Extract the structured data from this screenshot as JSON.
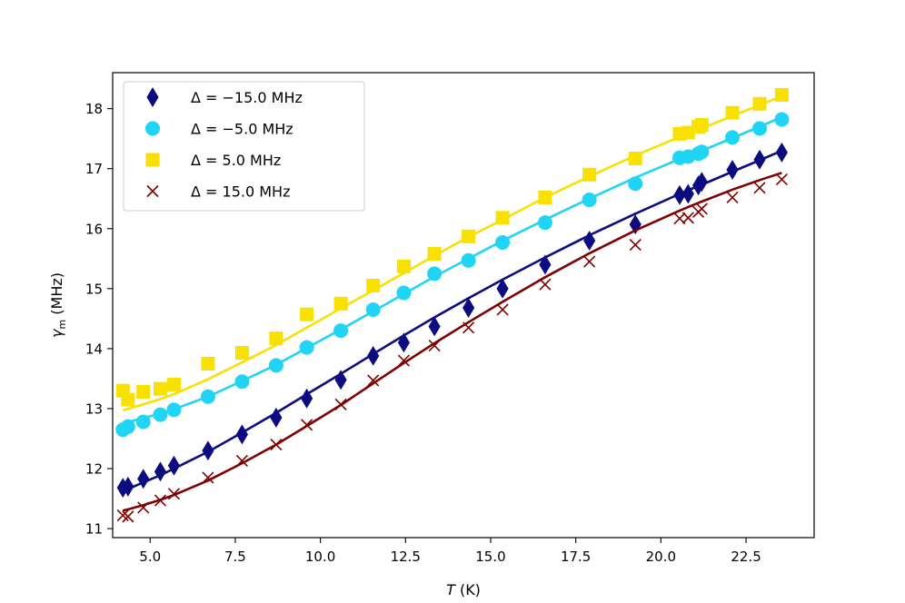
{
  "chart_data": {
    "type": "scatter",
    "title": "",
    "xlabel_var": "T",
    "xlabel_unit": " (K)",
    "ylabel_var": "γ",
    "ylabel_sub": "m",
    "ylabel_unit": " (MHz)",
    "xlim": [
      3.9,
      24.5
    ],
    "ylim": [
      10.85,
      18.6
    ],
    "xticks": [
      5.0,
      7.5,
      10.0,
      12.5,
      15.0,
      17.5,
      20.0,
      22.5
    ],
    "xtick_labels": [
      "5.0",
      "7.5",
      "10.0",
      "12.5",
      "15.0",
      "17.5",
      "20.0",
      "22.5"
    ],
    "yticks": [
      11,
      12,
      13,
      14,
      15,
      16,
      17,
      18
    ],
    "ytick_labels": [
      "11",
      "12",
      "13",
      "14",
      "15",
      "16",
      "17",
      "18"
    ],
    "legend_position": "upper-left",
    "x": [
      4.2,
      4.35,
      4.8,
      5.3,
      5.7,
      6.7,
      7.7,
      8.7,
      9.6,
      10.6,
      11.55,
      12.45,
      13.35,
      14.35,
      15.35,
      16.6,
      17.9,
      19.25,
      20.55,
      20.8,
      21.1,
      21.2,
      22.1,
      22.9,
      23.55
    ],
    "series": [
      {
        "name": "Δ = −15.0 MHz",
        "label_prefix": "Δ = −15.0",
        "label_unit": " MHz",
        "marker": "diamond",
        "color": "#0c0c80",
        "values": [
          11.68,
          11.7,
          11.83,
          11.95,
          12.05,
          12.3,
          12.57,
          12.85,
          13.17,
          13.48,
          13.88,
          14.1,
          14.37,
          14.68,
          15.0,
          15.4,
          15.8,
          16.07,
          16.56,
          16.58,
          16.72,
          16.78,
          16.98,
          17.15,
          17.27
        ],
        "fit": [
          11.63,
          11.66,
          11.77,
          11.89,
          12.0,
          12.28,
          12.6,
          12.93,
          13.24,
          13.58,
          13.91,
          14.22,
          14.52,
          14.84,
          15.15,
          15.52,
          15.89,
          16.25,
          16.58,
          16.64,
          16.71,
          16.73,
          16.95,
          17.14,
          17.3
        ]
      },
      {
        "name": "Δ = −5.0 MHz",
        "label_prefix": "Δ = −5.0",
        "label_unit": " MHz",
        "marker": "circle",
        "color": "#20d4f4",
        "values": [
          12.65,
          12.7,
          12.78,
          12.9,
          12.98,
          13.2,
          13.45,
          13.72,
          14.02,
          14.3,
          14.65,
          14.93,
          15.25,
          15.47,
          15.77,
          16.1,
          16.48,
          16.75,
          17.18,
          17.2,
          17.25,
          17.28,
          17.52,
          17.67,
          17.82
        ],
        "fit": [
          12.76,
          12.78,
          12.84,
          12.92,
          12.99,
          13.2,
          13.46,
          13.73,
          14.01,
          14.32,
          14.62,
          14.91,
          15.2,
          15.5,
          15.8,
          16.15,
          16.5,
          16.85,
          17.16,
          17.22,
          17.28,
          17.3,
          17.51,
          17.7,
          17.86
        ]
      },
      {
        "name": "Δ = 5.0 MHz",
        "label_prefix": "Δ = 5.0",
        "label_unit": " MHz",
        "marker": "square",
        "color": "#f8e000",
        "values": [
          13.3,
          13.15,
          13.28,
          13.33,
          13.4,
          13.75,
          13.93,
          14.17,
          14.57,
          14.75,
          15.05,
          15.37,
          15.58,
          15.87,
          16.18,
          16.52,
          16.9,
          17.17,
          17.58,
          17.6,
          17.7,
          17.73,
          17.93,
          18.08,
          18.23
        ],
        "fit": [
          12.97,
          13.0,
          13.07,
          13.16,
          13.24,
          13.49,
          13.77,
          14.06,
          14.35,
          14.67,
          14.97,
          15.26,
          15.55,
          15.86,
          16.15,
          16.52,
          16.87,
          17.22,
          17.53,
          17.59,
          17.65,
          17.67,
          17.88,
          18.06,
          18.21
        ]
      },
      {
        "name": "Δ = 15.0 MHz",
        "label_prefix": "Δ = 15.0",
        "label_unit": " MHz",
        "marker": "x",
        "color": "#800000",
        "values": [
          11.22,
          11.2,
          11.35,
          11.47,
          11.58,
          11.85,
          12.13,
          12.4,
          12.73,
          13.07,
          13.47,
          13.8,
          14.05,
          14.35,
          14.65,
          15.07,
          15.45,
          15.73,
          16.17,
          16.18,
          16.28,
          16.33,
          16.52,
          16.68,
          16.82
        ],
        "fit": [
          11.3,
          11.32,
          11.39,
          11.48,
          11.56,
          11.8,
          12.09,
          12.4,
          12.71,
          13.06,
          13.42,
          13.76,
          14.09,
          14.44,
          14.78,
          15.19,
          15.59,
          15.97,
          16.3,
          16.36,
          16.43,
          16.45,
          16.65,
          16.81,
          16.93
        ]
      }
    ]
  }
}
